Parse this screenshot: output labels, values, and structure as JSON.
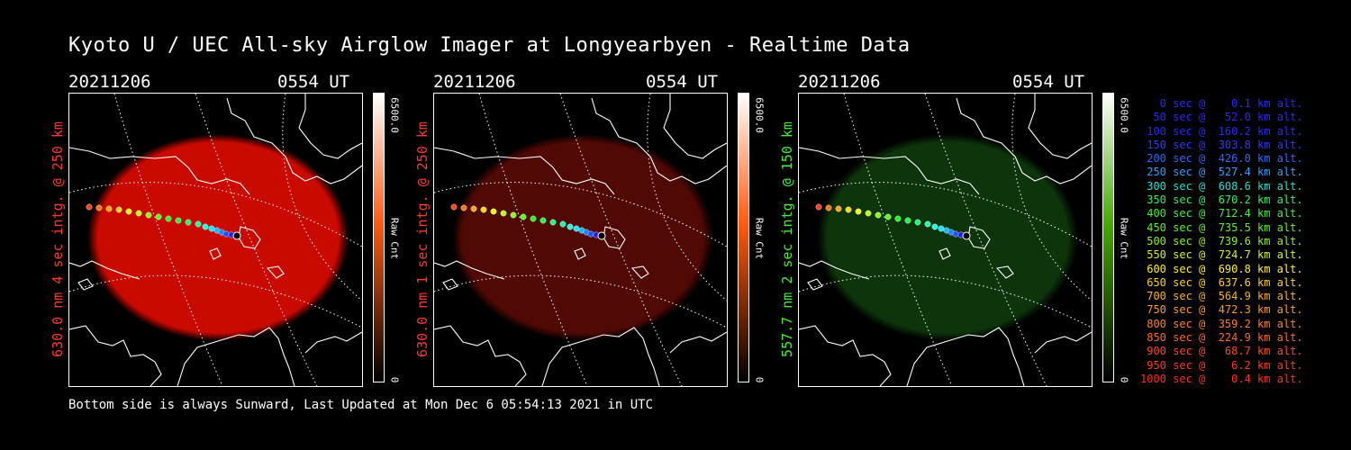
{
  "title": "Kyoto U / UEC All-sky Airglow Imager at Longyearbyen - Realtime Data",
  "panels": [
    {
      "date": "20211206",
      "time": "0554 UT",
      "label": "630.0 nm 4 sec intg. @ 250 km",
      "label_color": "#ff3a2a",
      "glow_color": "#d40a00",
      "glow_opacity": 0.95,
      "cbar_top_color": "#ffffff",
      "cbar_mid_color": "#ff5a10",
      "cbar_max": "6500.0",
      "cbar_min": "0",
      "cbar_unit": "Raw Cnt"
    },
    {
      "date": "20211206",
      "time": "0554 UT",
      "label": "630.0 nm 1 sec intg. @ 250 km",
      "label_color": "#ff3a2a",
      "glow_color": "#5a0a06",
      "glow_opacity": 0.9,
      "cbar_top_color": "#ffffff",
      "cbar_mid_color": "#ff5a10",
      "cbar_max": "6500.0",
      "cbar_min": "0",
      "cbar_unit": "Raw Cnt"
    },
    {
      "date": "20211206",
      "time": "0554 UT",
      "label": "557.7 nm 2 sec intg. @ 150 km",
      "label_color": "#44ee33",
      "glow_color": "#0f3a0c",
      "glow_opacity": 0.9,
      "cbar_top_color": "#ffffff",
      "cbar_mid_color": "#44aa00",
      "cbar_max": "6500.0",
      "cbar_min": "0",
      "cbar_unit": "Raw Cnt"
    }
  ],
  "legend": [
    {
      "text": "   0 sec @    0.1 km alt.",
      "color": "#2a2aff"
    },
    {
      "text": "  50 sec @   52.0 km alt.",
      "color": "#2a2aff"
    },
    {
      "text": " 100 sec @  160.2 km alt.",
      "color": "#2a2aff"
    },
    {
      "text": " 150 sec @  303.8 km alt.",
      "color": "#2a3aff"
    },
    {
      "text": " 200 sec @  426.0 km alt.",
      "color": "#2a6aff"
    },
    {
      "text": " 250 sec @  527.4 km alt.",
      "color": "#28a0ff"
    },
    {
      "text": " 300 sec @  608.6 km alt.",
      "color": "#20e0d0"
    },
    {
      "text": " 350 sec @  670.2 km alt.",
      "color": "#30f060"
    },
    {
      "text": " 400 sec @  712.4 km alt.",
      "color": "#40f030"
    },
    {
      "text": " 450 sec @  735.5 km alt.",
      "color": "#60f020"
    },
    {
      "text": " 500 sec @  739.6 km alt.",
      "color": "#90f020"
    },
    {
      "text": " 550 sec @  724.7 km alt.",
      "color": "#d8f020"
    },
    {
      "text": " 600 sec @  690.8 km alt.",
      "color": "#fff020"
    },
    {
      "text": " 650 sec @  637.6 km alt.",
      "color": "#ffd020"
    },
    {
      "text": " 700 sec @  564.9 km alt.",
      "color": "#ffb020"
    },
    {
      "text": " 750 sec @  472.3 km alt.",
      "color": "#ff9a20"
    },
    {
      "text": " 800 sec @  359.2 km alt.",
      "color": "#ff8020"
    },
    {
      "text": " 850 sec @  224.9 km alt.",
      "color": "#ff6a20"
    },
    {
      "text": " 900 sec @   68.7 km alt.",
      "color": "#ff4a20"
    },
    {
      "text": " 950 sec @    6.2 km alt.",
      "color": "#ff3a20"
    },
    {
      "text": "1000 sec @    0.4 km alt.",
      "color": "#ff3020"
    }
  ],
  "footer": "Bottom side is always Sunward, Last Updated at Mon Dec  6 05:54:13 2021 in UTC"
}
